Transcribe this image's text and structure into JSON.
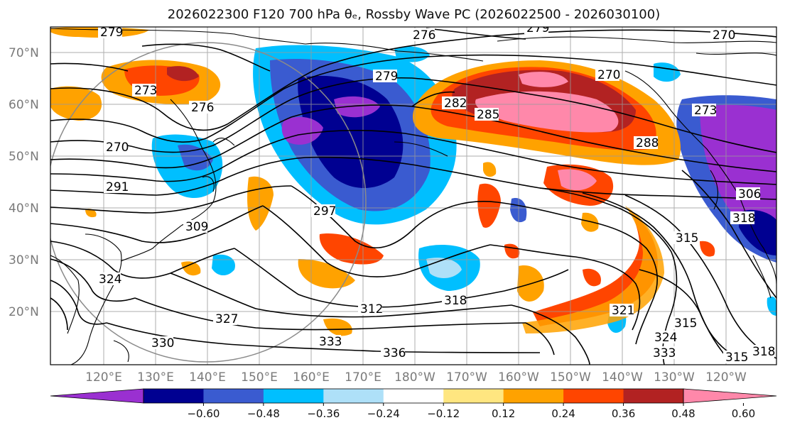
{
  "title": "2026022300 F120 700 hPa θₑ, Rossby Wave PC (2026022500 - 2026030100)",
  "lat_labels": [
    "70°N",
    "60°N",
    "50°N",
    "40°N",
    "30°N",
    "20°N"
  ],
  "lon_labels": [
    "120°E",
    "130°E",
    "140°E",
    "150°E",
    "160°E",
    "170°E",
    "180°W",
    "170°W",
    "160°W",
    "150°W",
    "140°W",
    "130°W",
    "120°W"
  ],
  "contour_labels": [
    "279",
    "276",
    "279",
    "270",
    "270",
    "279",
    "273",
    "282",
    "285",
    "276",
    "270",
    "288",
    "273",
    "291",
    "297",
    "306",
    "318",
    "309",
    "315",
    "324",
    "312",
    "318",
    "327",
    "333",
    "336",
    "330",
    "321",
    "315",
    "324",
    "333",
    "315",
    "318"
  ],
  "colorbar": {
    "ticks": [
      "−0.60",
      "−0.48",
      "−0.36",
      "−0.24",
      "−0.12",
      "0.12",
      "0.24",
      "0.36",
      "0.48",
      "0.60"
    ],
    "colors": [
      "#9a30d1",
      "#000091",
      "#3a5bd0",
      "#00bfff",
      "#aee0f8",
      "#ffffff",
      "#ffe680",
      "#ffa200",
      "#ff4500",
      "#b22222",
      "#ff88aa"
    ]
  }
}
